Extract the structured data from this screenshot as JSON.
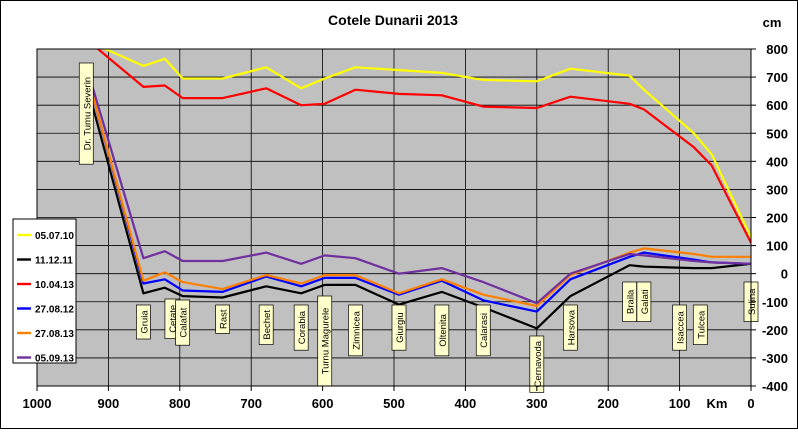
{
  "chart_data": {
    "type": "line",
    "title": "Cotele Dunarii 2013",
    "xlabel": "Km",
    "ylabel": "cm",
    "x_axis_reversed": true,
    "xlim": [
      0,
      1000
    ],
    "ylim": [
      -400,
      800
    ],
    "x_ticks": [
      "1000",
      "900",
      "800",
      "700",
      "600",
      "500",
      "400",
      "300",
      "200",
      "100",
      "0"
    ],
    "y_ticks": [
      "800",
      "700",
      "600",
      "500",
      "400",
      "300",
      "200",
      "100",
      "0",
      "-100",
      "-200",
      "-300",
      "-400"
    ],
    "grid": true,
    "legend_position": "left",
    "x": [
      931,
      851,
      821,
      796,
      740,
      679,
      630,
      597,
      554,
      493,
      433,
      375,
      300,
      253,
      170,
      150,
      80,
      55,
      0
    ],
    "station_labels": [
      {
        "name": "Dr. Tumu  Severin",
        "km": 931,
        "placement": "upper"
      },
      {
        "name": "Gruia",
        "km": 851,
        "placement": "lower"
      },
      {
        "name": "Cetate",
        "km": 811,
        "placement": "lower"
      },
      {
        "name": "Calafat",
        "km": 796,
        "placement": "lower"
      },
      {
        "name": "Rast",
        "km": 740,
        "placement": "lower"
      },
      {
        "name": "Bechet",
        "km": 679,
        "placement": "lower"
      },
      {
        "name": "Corabia",
        "km": 630,
        "placement": "lower"
      },
      {
        "name": "Turnu  Magurele",
        "km": 597,
        "placement": "lower"
      },
      {
        "name": "Zimnicea",
        "km": 554,
        "placement": "lower"
      },
      {
        "name": "Giurgiu",
        "km": 493,
        "placement": "lower"
      },
      {
        "name": "Oltenita",
        "km": 433,
        "placement": "lower"
      },
      {
        "name": "Calarasi",
        "km": 375,
        "placement": "lower"
      },
      {
        "name": "Cernavoda",
        "km": 300,
        "placement": "lower"
      },
      {
        "name": "Harsova",
        "km": 253,
        "placement": "lower"
      },
      {
        "name": "Braila",
        "km": 170,
        "placement": "upper"
      },
      {
        "name": "Galati",
        "km": 150,
        "placement": "upper"
      },
      {
        "name": "Isaccea",
        "km": 100,
        "placement": "lower"
      },
      {
        "name": "Tulcea",
        "km": 71,
        "placement": "lower"
      },
      {
        "name": "Sulina",
        "km": 0,
        "placement": "upper"
      }
    ],
    "series": [
      {
        "name": "05.07.10",
        "color": "#ffff00",
        "x": [
          931,
          851,
          821,
          796,
          740,
          679,
          630,
          597,
          554,
          493,
          433,
          375,
          300,
          253,
          170,
          150,
          80,
          55,
          0
        ],
        "values": [
          830,
          740,
          765,
          695,
          695,
          735,
          660,
          695,
          735,
          725,
          715,
          690,
          685,
          730,
          705,
          655,
          500,
          425,
          130
        ]
      },
      {
        "name": "11.12.11",
        "color": "#000000",
        "x": [
          931,
          851,
          821,
          796,
          740,
          679,
          630,
          597,
          554,
          493,
          433,
          375,
          300,
          253,
          170,
          150,
          80,
          55,
          0
        ],
        "values": [
          680,
          -70,
          -50,
          -80,
          -85,
          -45,
          -70,
          -40,
          -40,
          -110,
          -65,
          -120,
          -195,
          -80,
          30,
          25,
          20,
          20,
          35
        ]
      },
      {
        "name": "10.04.13",
        "color": "#ff0000",
        "x": [
          931,
          851,
          821,
          796,
          740,
          679,
          630,
          597,
          554,
          493,
          433,
          375,
          300,
          253,
          170,
          150,
          80,
          55,
          0
        ],
        "values": [
          835,
          665,
          670,
          625,
          625,
          660,
          600,
          605,
          655,
          640,
          635,
          595,
          590,
          630,
          605,
          585,
          450,
          385,
          110
        ]
      },
      {
        "name": "27.08.12",
        "color": "#0000ff",
        "x": [
          931,
          851,
          821,
          796,
          740,
          679,
          630,
          597,
          554,
          493,
          433,
          375,
          300,
          253,
          170,
          150,
          80,
          55,
          0
        ],
        "values": [
          720,
          -35,
          -20,
          -60,
          -65,
          -10,
          -45,
          -15,
          -15,
          -75,
          -25,
          -95,
          -135,
          -20,
          60,
          75,
          50,
          40,
          35
        ]
      },
      {
        "name": "27.08.13",
        "color": "#ff8000",
        "x": [
          931,
          851,
          821,
          796,
          740,
          679,
          630,
          597,
          554,
          493,
          433,
          375,
          300,
          253,
          170,
          150,
          80,
          55,
          0
        ],
        "values": [
          720,
          -25,
          5,
          -30,
          -55,
          -5,
          -35,
          -5,
          -5,
          -70,
          -20,
          -75,
          -115,
          -5,
          75,
          90,
          70,
          60,
          60
        ]
      },
      {
        "name": "05.09.13",
        "color": "#7030a0",
        "x": [
          931,
          851,
          821,
          796,
          740,
          679,
          630,
          597,
          554,
          493,
          433,
          375,
          300,
          253,
          170,
          150,
          80,
          55,
          0
        ],
        "values": [
          740,
          55,
          80,
          45,
          45,
          75,
          35,
          65,
          55,
          0,
          20,
          -30,
          -105,
          0,
          70,
          65,
          45,
          40,
          35
        ]
      }
    ]
  }
}
